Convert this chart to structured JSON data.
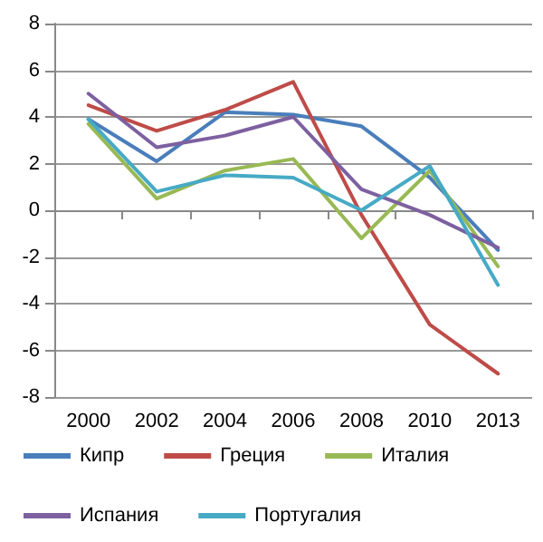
{
  "chart_data": {
    "type": "line",
    "categories": [
      "2000",
      "2002",
      "2004",
      "2006",
      "2008",
      "2010",
      "2013"
    ],
    "series": [
      {
        "name": "Кипр",
        "color": "#4a7ebb",
        "values": [
          3.9,
          2.1,
          4.2,
          4.1,
          3.6,
          1.4,
          -1.7
        ]
      },
      {
        "name": "Греция",
        "color": "#be4b48",
        "values": [
          4.5,
          3.4,
          4.3,
          5.5,
          -0.2,
          -4.9,
          -7.0
        ]
      },
      {
        "name": "Италия",
        "color": "#98b954",
        "values": [
          3.7,
          0.5,
          1.7,
          2.2,
          -1.2,
          1.7,
          -2.4
        ]
      },
      {
        "name": "Испания",
        "color": "#7d60a0",
        "values": [
          5.0,
          2.7,
          3.2,
          4.0,
          0.9,
          -0.2,
          -1.6
        ]
      },
      {
        "name": "Португалия",
        "color": "#46aac5",
        "values": [
          3.9,
          0.8,
          1.5,
          1.4,
          0.0,
          1.9,
          -3.2
        ]
      }
    ],
    "ylim": [
      -8,
      8
    ],
    "yticks": [
      -8,
      -6,
      -4,
      -2,
      0,
      2,
      4,
      6,
      8
    ],
    "grid": "y",
    "legend": "bottom",
    "marker": "none",
    "line_style": "solid"
  }
}
